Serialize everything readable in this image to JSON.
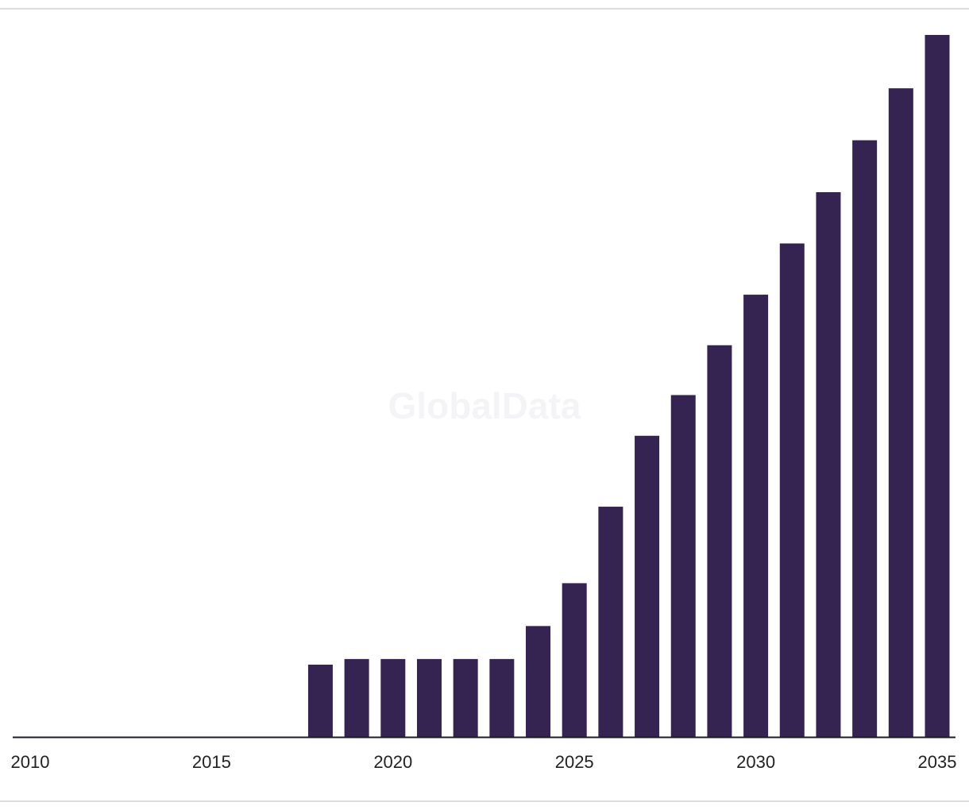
{
  "colors": {
    "bar": "#352351",
    "axis": "#1e1a2a",
    "tick_text": "#222222",
    "frame_rule": "#dddddd",
    "watermark": "#f4f4f6",
    "background": "#ffffff"
  },
  "watermark": {
    "text": "GlobalData"
  },
  "chart_data": {
    "type": "bar",
    "title": "",
    "xlabel": "",
    "ylabel": "",
    "grid": false,
    "legend": "none",
    "categories": [
      "2010",
      "2011",
      "2012",
      "2013",
      "2014",
      "2015",
      "2016",
      "2017",
      "2018",
      "2019",
      "2020",
      "2021",
      "2022",
      "2023",
      "2024",
      "2025",
      "2026",
      "2027",
      "2028",
      "2029",
      "2030",
      "2031",
      "2032",
      "2033",
      "2034",
      "2035"
    ],
    "values": [
      0,
      0,
      0,
      0,
      0,
      0,
      0,
      0,
      10.3,
      11.1,
      11.1,
      11.1,
      11.1,
      11.1,
      15.8,
      21.9,
      32.8,
      42.9,
      48.7,
      55.8,
      63.0,
      70.3,
      77.6,
      85.0,
      92.4,
      100.0
    ],
    "x_tick_labels": [
      "2010",
      "2015",
      "2020",
      "2025",
      "2030",
      "2035"
    ],
    "ylim": [
      0,
      100
    ]
  }
}
